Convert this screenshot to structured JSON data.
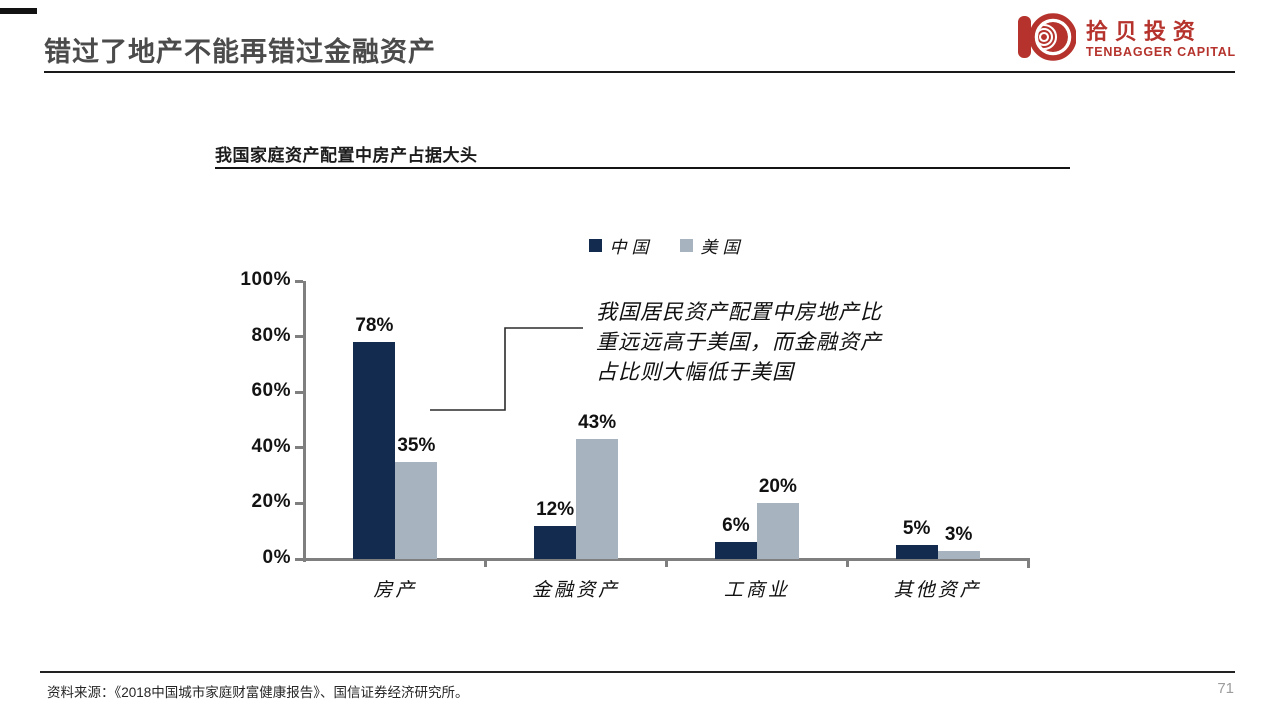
{
  "header": {
    "title": "错过了地产不能再错过金融资产"
  },
  "logo": {
    "name_cn": "拾贝投资",
    "name_en": "TENBAGGER CAPITAL",
    "color": "#B5332C"
  },
  "chart": {
    "section_title": "我国家庭资产配置中房产占据大头",
    "annotation": {
      "lines": [
        "我国居民资产配置中房地产比",
        "重远远高于美国，而金融资产",
        "占比则大幅低于美国"
      ]
    }
  },
  "chart_data": {
    "type": "bar",
    "title": "我国家庭资产配置中房产占据大头",
    "categories": [
      "房产",
      "金融资产",
      "工商业",
      "其他资产"
    ],
    "series": [
      {
        "name": "中国",
        "color": "#122B4E",
        "values": [
          78,
          12,
          6,
          5
        ]
      },
      {
        "name": "美国",
        "color": "#A8B3C0",
        "values": [
          35,
          43,
          20,
          3
        ]
      }
    ],
    "xlabel": "",
    "ylabel": "",
    "ylim": [
      0,
      100
    ],
    "ytick_step": 20,
    "tick_format": "percent",
    "legend_position": "top",
    "grid": false,
    "data_labels": true,
    "axis_color": "#7F7F7F"
  },
  "footer": {
    "source": "资料来源：《2018中国城市家庭财富健康报告》、国信证券经济研究所。",
    "page": "71"
  }
}
